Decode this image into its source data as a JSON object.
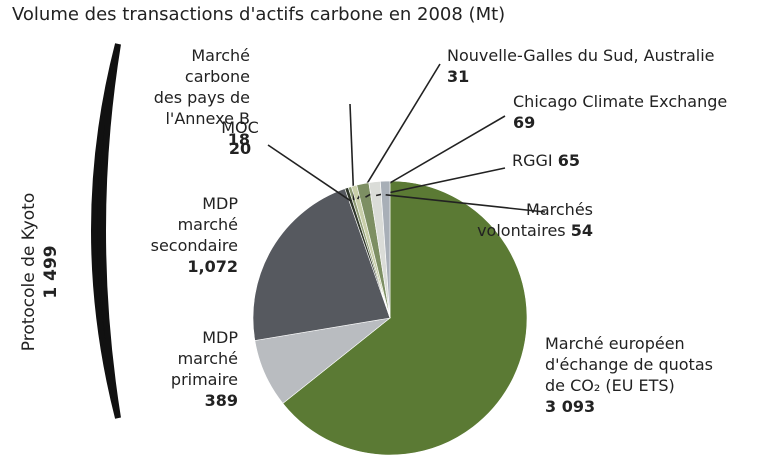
{
  "chart_data": {
    "type": "pie",
    "title": "Volume des transactions d'actifs carbone en 2008 (Mt)",
    "categories": [
      "Marché européen\nd'échange de quotas\nde CO₂ (EU ETS)",
      "MDP\nmarché\nprimaire",
      "MDP\nmarché\nsecondaire",
      "MOC",
      "Marché carbone\ndes pays de l'Annexe B",
      "Nouvelle-Galles du Sud, Australie",
      "Chicago Climate Exchange",
      "RGGI",
      "Marchés\nvolontaires"
    ],
    "values": [
      3093,
      389,
      1072,
      20,
      18,
      31,
      69,
      65,
      54
    ],
    "value_labels": [
      "3 093",
      "389",
      "1,072",
      "20",
      "18",
      "31",
      "69",
      "65",
      "54"
    ],
    "colors": [
      "#5b7a34",
      "#b9bcc0",
      "#56595f",
      "#2e3629",
      "#8c9a72",
      "#c9cfaa",
      "#7d8f63",
      "#dadcd8",
      "#a8afb7"
    ],
    "annotation": {
      "text": "Protocole de Kyoto",
      "value": 1499,
      "value_label": "1 499"
    }
  }
}
